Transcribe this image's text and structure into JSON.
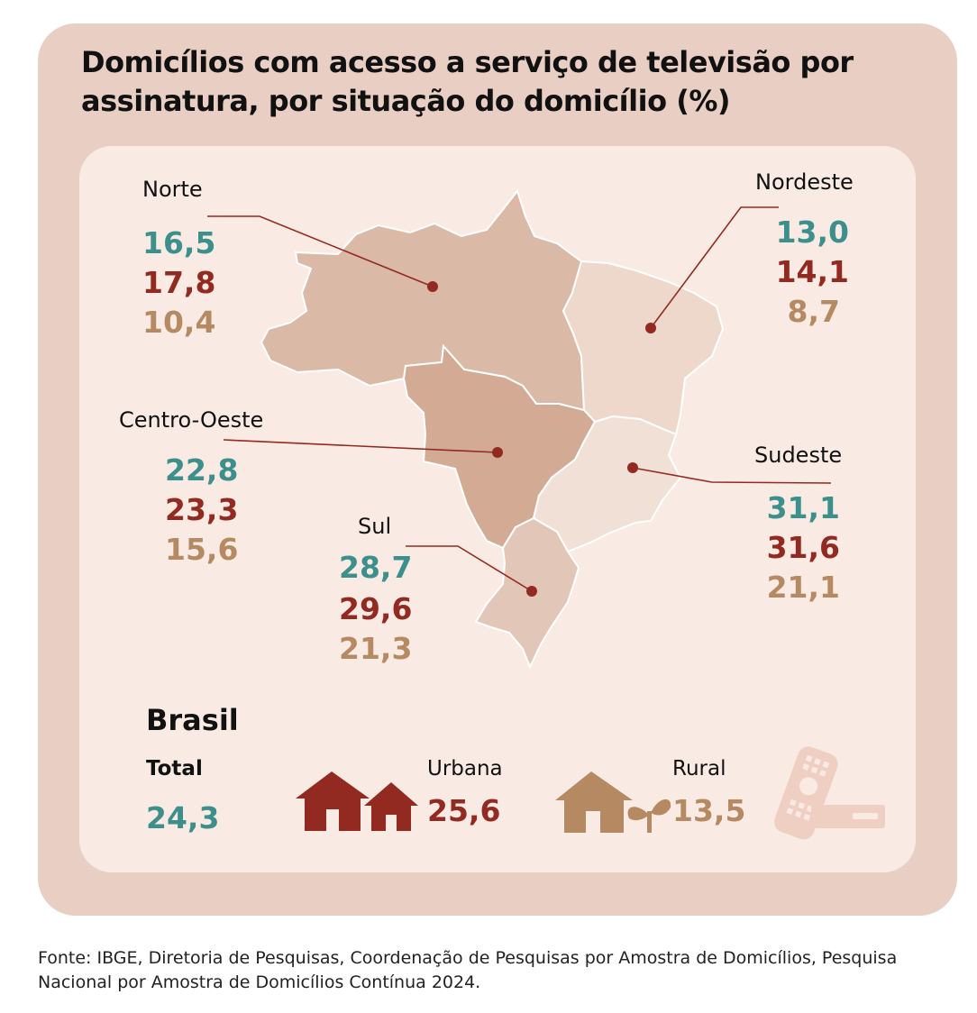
{
  "title": "Domicílios com acesso a serviço de televisão por assinatura, por situação do domicílio (%)",
  "colors": {
    "total": "#3d8f8c",
    "urbana": "#922a21",
    "rural": "#b58a63"
  },
  "regions": {
    "norte": {
      "name": "Norte",
      "total": "16,5",
      "urbana": "17,8",
      "rural": "10,4"
    },
    "nordeste": {
      "name": "Nordeste",
      "total": "13,0",
      "urbana": "14,1",
      "rural": "8,7"
    },
    "centro_oeste": {
      "name": "Centro-Oeste",
      "total": "22,8",
      "urbana": "23,3",
      "rural": "15,6"
    },
    "sudeste": {
      "name": "Sudeste",
      "total": "31,1",
      "urbana": "31,6",
      "rural": "21,1"
    },
    "sul": {
      "name": "Sul",
      "total": "28,7",
      "urbana": "29,6",
      "rural": "21,3"
    }
  },
  "brasil": {
    "heading": "Brasil",
    "total_label": "Total",
    "total_value": "24,3",
    "urbana_label": "Urbana",
    "urbana_value": "25,6",
    "rural_label": "Rural",
    "rural_value": "13,5"
  },
  "icons": [
    "house-icon",
    "sprout-icon",
    "tv-remote-icon",
    "set-top-box-icon"
  ],
  "footer": "Fonte: IBGE, Diretoria de Pesquisas, Coordenação de Pesquisas por Amostra de Domicílios, Pesquisa Nacional por Amostra de Domicílios Contínua 2024."
}
